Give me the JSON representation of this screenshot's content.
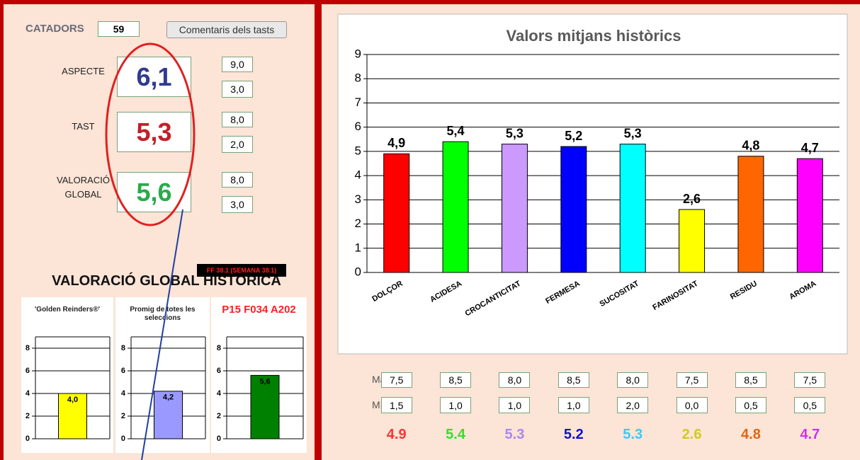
{
  "panel": {
    "catadors_label": "CATADORS",
    "catadors": "59",
    "button": "Comentaris dels tasts"
  },
  "scores": [
    {
      "label": [
        "ASPECTE"
      ],
      "value": "6,1",
      "max": "9,0",
      "min": "3,0",
      "color": "#2e3b8f"
    },
    {
      "label": [
        "TAST"
      ],
      "value": "5,3",
      "max": "8,0",
      "min": "2,0",
      "color": "#c0202a"
    },
    {
      "label": [
        "VALORACIÓ",
        "GLOBAL"
      ],
      "value": "5,6",
      "max": "8,0",
      "min": "3,0",
      "color": "#2aaa4a"
    }
  ],
  "history": {
    "title": "VALORACIÓ GLOBAL HISTÒRICA",
    "tag": "FF 38.1  (SEMANA 38.1)"
  },
  "chart_data": [
    {
      "type": "bar",
      "title": "Valors mitjans històrics",
      "categories": [
        "DOLÇOR",
        "ACIDESA",
        "CROCANTICITAT",
        "FERMESA",
        "SUCOSITAT",
        "FARINOSITAT",
        "RESIDU",
        "AROMA"
      ],
      "values": [
        4.9,
        5.4,
        5.3,
        5.2,
        5.3,
        2.6,
        4.8,
        4.7
      ],
      "value_labels": [
        "4,9",
        "5,4",
        "5,3",
        "5,2",
        "5,3",
        "2,6",
        "4,8",
        "4,7"
      ],
      "colors": [
        "#ff0000",
        "#00ff00",
        "#cc99ff",
        "#0000ff",
        "#00ffff",
        "#ffff00",
        "#ff6600",
        "#ff00ff"
      ],
      "ylim": [
        0,
        9
      ],
      "yticks": [
        0,
        1,
        2,
        3,
        4,
        5,
        6,
        7,
        8,
        9
      ],
      "grid": true
    },
    {
      "type": "bar",
      "title": "'Golden Reinders®'",
      "values": [
        4.0
      ],
      "value_labels": [
        "4,0"
      ],
      "colors": [
        "#ffff00"
      ],
      "ylim": [
        0,
        9
      ],
      "yticks": [
        0,
        2,
        4,
        6,
        8
      ],
      "grid": true
    },
    {
      "type": "bar",
      "title": "Promig de totes les seleccions",
      "values": [
        4.2
      ],
      "value_labels": [
        "4,2"
      ],
      "colors": [
        "#9999ff"
      ],
      "ylim": [
        0,
        9
      ],
      "yticks": [
        0,
        2,
        4,
        6,
        8
      ],
      "grid": true
    },
    {
      "type": "bar",
      "title": "P15 F034 A202",
      "values": [
        5.6
      ],
      "value_labels": [
        "5,6"
      ],
      "colors": [
        "#008000"
      ],
      "ylim": [
        0,
        9
      ],
      "yticks": [
        0,
        2,
        4,
        6,
        8
      ],
      "grid": true
    }
  ],
  "stats": {
    "max_label": "Màx.",
    "min_label": "Mín.",
    "max": [
      "7,5",
      "8,5",
      "8,0",
      "8,5",
      "8,0",
      "7,5",
      "8,5",
      "7,5"
    ],
    "min": [
      "1,5",
      "1,0",
      "1,0",
      "1,0",
      "2,0",
      "0,0",
      "0,5",
      "0,5"
    ],
    "averages": [
      "4.9",
      "5.4",
      "5.3",
      "5.2",
      "5.3",
      "2.6",
      "4.8",
      "4.7"
    ],
    "colors": [
      "#ff3333",
      "#33dd33",
      "#aa88ee",
      "#1111cc",
      "#33ccff",
      "#cccc22",
      "#dd6611",
      "#cc33ee"
    ]
  }
}
